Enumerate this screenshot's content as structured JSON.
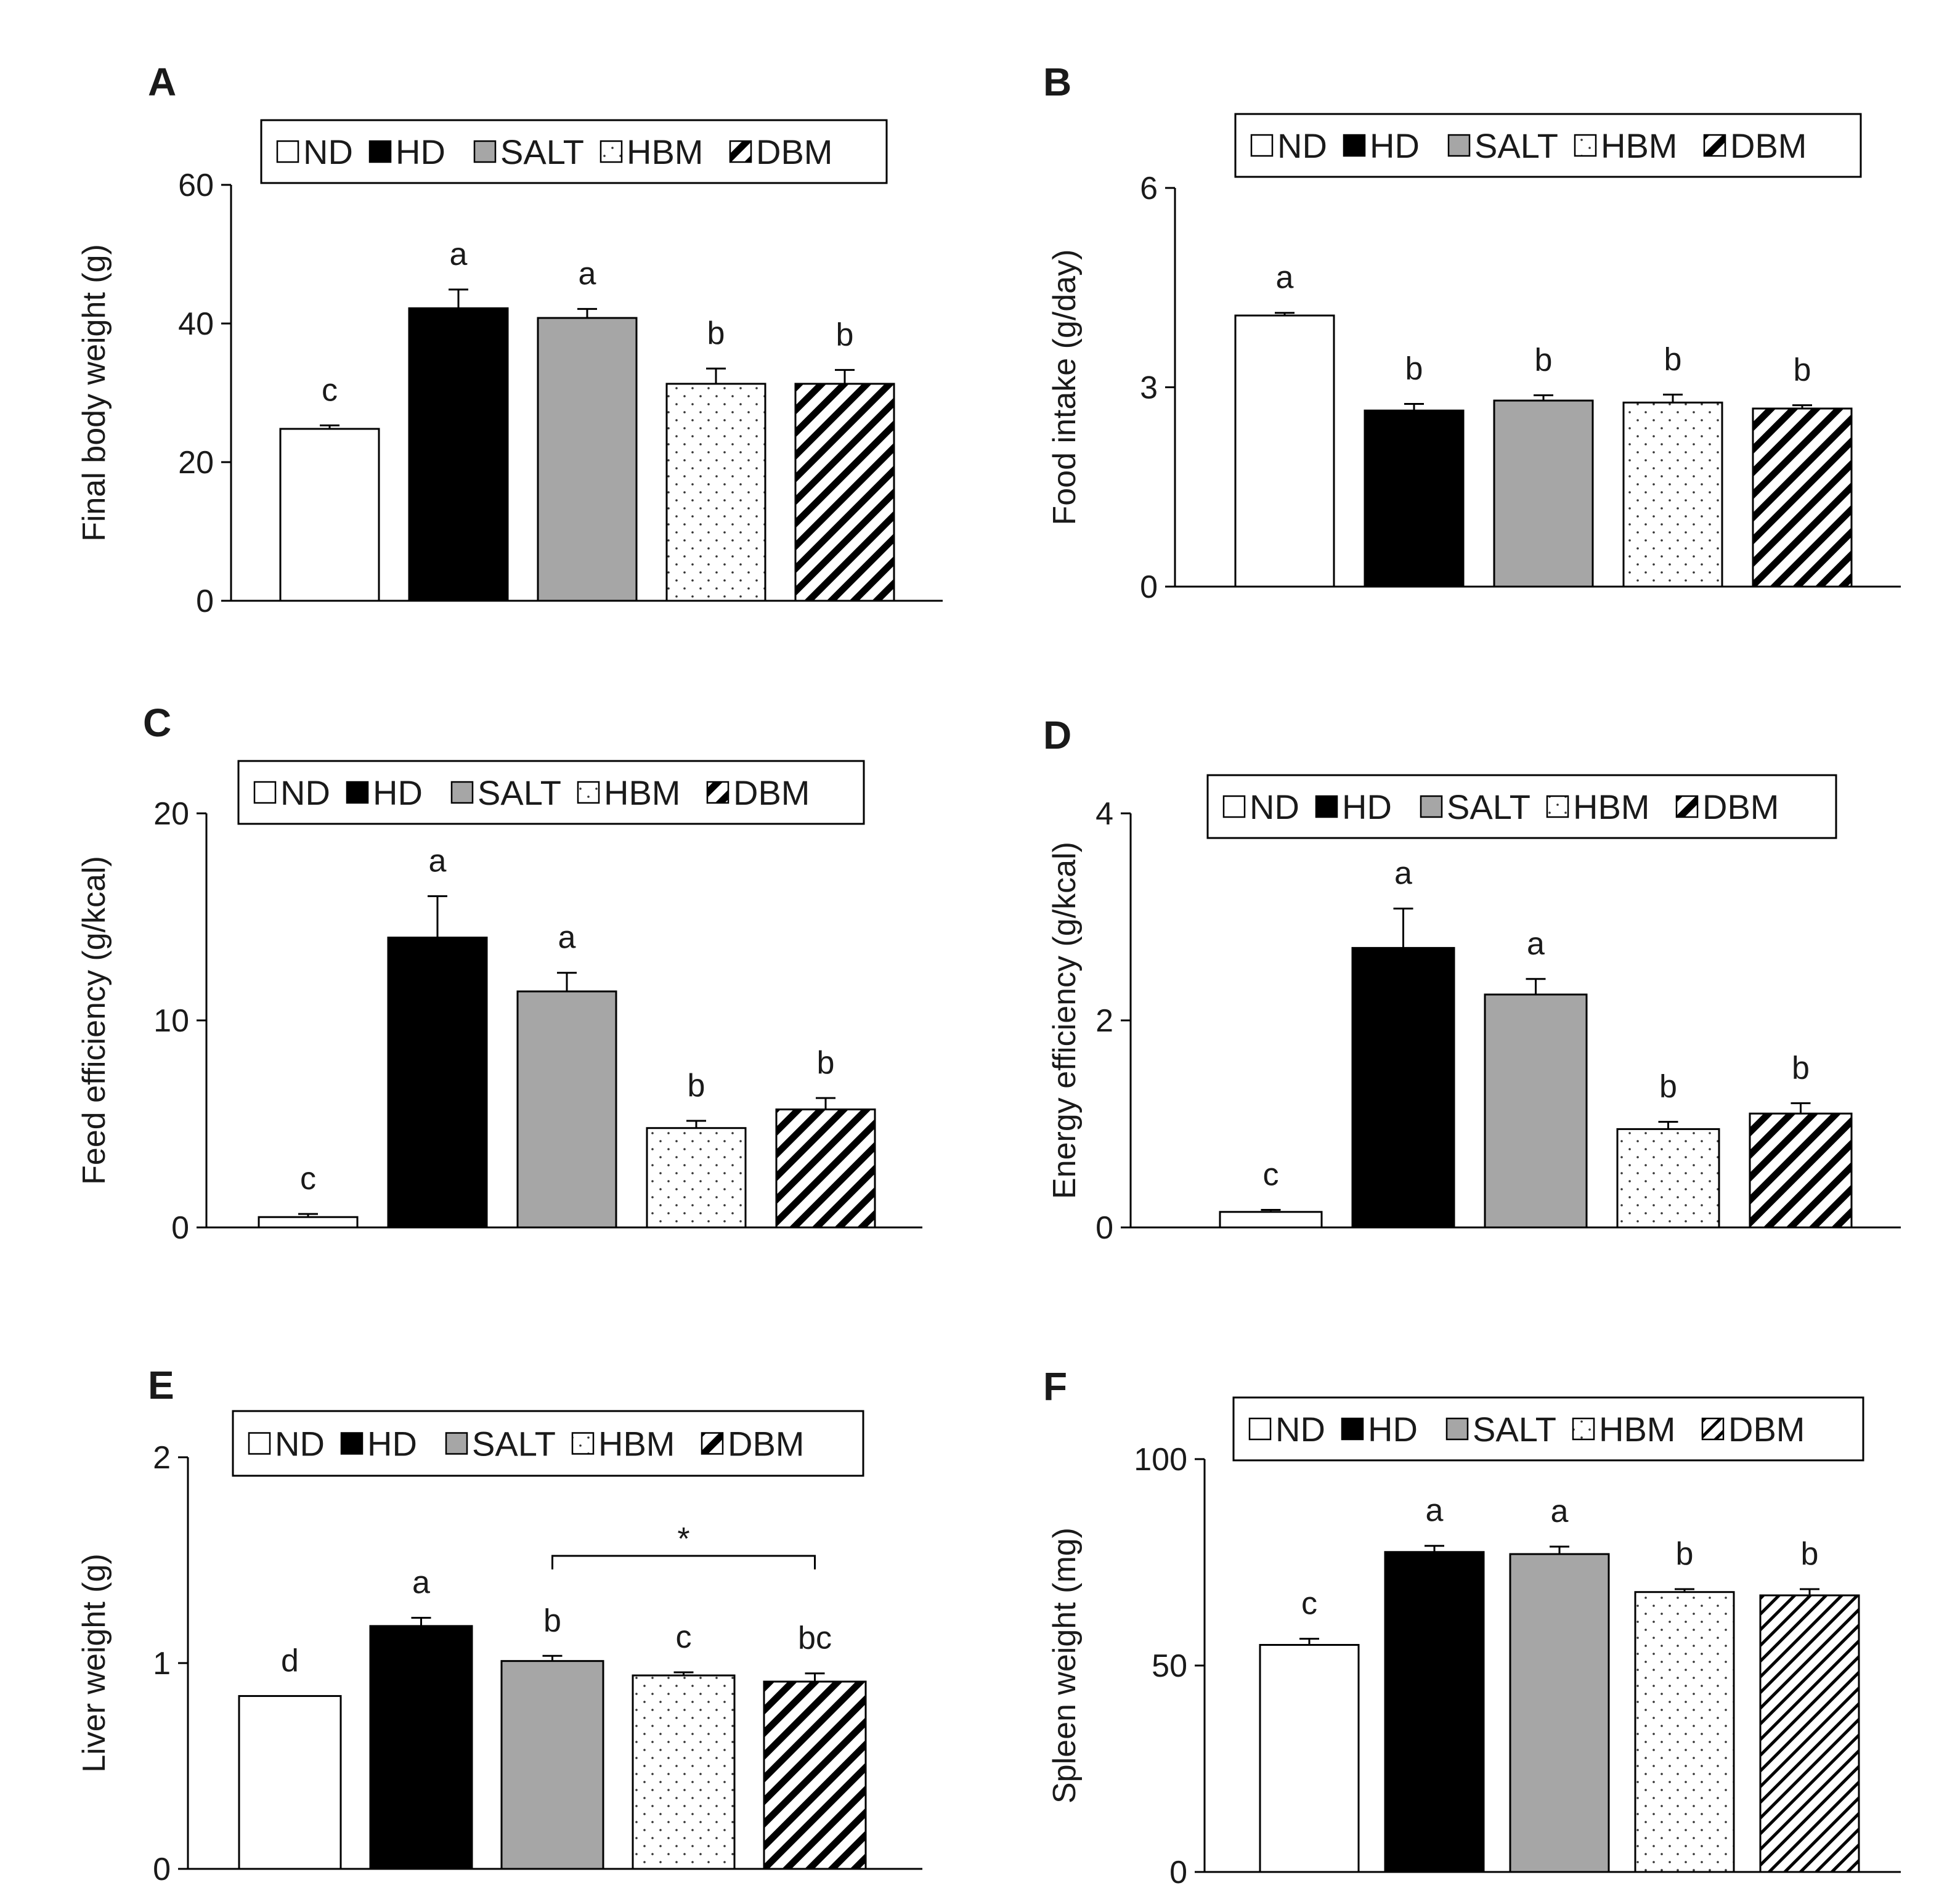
{
  "legend_groups": [
    "ND",
    "HD",
    "SALT",
    "HBM",
    "DBM"
  ],
  "colors": {
    "ND": "#ffffff",
    "HD": "#000000",
    "SALT": "#a6a6a6",
    "HBM": "dots",
    "DBM": "diagonal-hatch",
    "axis": "#000000"
  },
  "chart_data": [
    {
      "panel": "A",
      "type": "bar",
      "categories": [
        "ND",
        "HD",
        "SALT",
        "HBM",
        "DBM"
      ],
      "values": [
        24.8,
        42.2,
        40.8,
        31.3,
        31.3
      ],
      "errors": [
        0.5,
        2.7,
        1.3,
        2.2,
        2.0
      ],
      "letters": [
        "c",
        "a",
        "a",
        "b",
        "b"
      ],
      "ylabel": "Final body weight (g)",
      "ylim": [
        0,
        60
      ],
      "yticks": [
        0,
        20,
        40,
        60
      ],
      "ytick_labels": [
        "0",
        "20",
        "40",
        "60"
      ]
    },
    {
      "panel": "B",
      "type": "bar",
      "categories": [
        "ND",
        "HD",
        "SALT",
        "HBM",
        "DBM"
      ],
      "values": [
        4.08,
        2.65,
        2.8,
        2.77,
        2.68
      ],
      "errors": [
        0.04,
        0.1,
        0.08,
        0.12,
        0.05
      ],
      "letters": [
        "a",
        "b",
        "b",
        "b",
        "b"
      ],
      "ylabel": "Food intake (g/day)",
      "ylim": [
        0,
        6
      ],
      "yticks": [
        0,
        3,
        6
      ],
      "ytick_labels": [
        "0",
        "3",
        "6"
      ]
    },
    {
      "panel": "C",
      "type": "bar",
      "categories": [
        "ND",
        "HD",
        "SALT",
        "HBM",
        "DBM"
      ],
      "values": [
        0.5,
        14.0,
        11.4,
        4.8,
        5.7
      ],
      "errors": [
        0.15,
        2.0,
        0.9,
        0.35,
        0.55
      ],
      "letters": [
        "c",
        "a",
        "a",
        "b",
        "b"
      ],
      "ylabel": "Feed efficiency (g/kcal)",
      "ylim": [
        0,
        20
      ],
      "yticks": [
        0,
        10,
        20
      ],
      "ytick_labels": [
        "0",
        "10",
        "20"
      ]
    },
    {
      "panel": "D",
      "type": "bar",
      "categories": [
        "ND",
        "HD",
        "SALT",
        "HBM",
        "DBM"
      ],
      "values": [
        0.15,
        2.7,
        2.25,
        0.95,
        1.1
      ],
      "errors": [
        0.02,
        0.38,
        0.15,
        0.07,
        0.1
      ],
      "letters": [
        "c",
        "a",
        "a",
        "b",
        "b"
      ],
      "ylabel": "Energy efficiency (g/kcal)",
      "ylim": [
        0,
        4
      ],
      "yticks": [
        0,
        2,
        4
      ],
      "ytick_labels": [
        "0",
        "2",
        "4"
      ]
    },
    {
      "panel": "E",
      "type": "bar",
      "categories": [
        "ND",
        "HD",
        "SALT",
        "HBM",
        "DBM"
      ],
      "values": [
        0.84,
        1.18,
        1.01,
        0.94,
        0.91
      ],
      "errors": [
        0.0,
        0.04,
        0.025,
        0.015,
        0.04
      ],
      "letters": [
        "d",
        "a",
        "b",
        "c",
        "bc"
      ],
      "ylabel": "Liver weight (g)",
      "ylim": [
        0,
        2
      ],
      "yticks": [
        0,
        1,
        2
      ],
      "ytick_labels": [
        "0",
        "1",
        "2"
      ],
      "bracket": {
        "from": "SALT",
        "to": "DBM",
        "label": "*"
      }
    },
    {
      "panel": "F",
      "type": "bar",
      "categories": [
        "ND",
        "HD",
        "SALT",
        "HBM",
        "DBM"
      ],
      "values": [
        55.0,
        77.5,
        77.0,
        67.8,
        67.0
      ],
      "errors": [
        1.5,
        1.5,
        1.8,
        0.7,
        1.5
      ],
      "letters": [
        "c",
        "a",
        "a",
        "b",
        "b"
      ],
      "ylabel": "Spleen weight (mg)",
      "ylim": [
        0,
        100
      ],
      "yticks": [
        0,
        50,
        100
      ],
      "ytick_labels": [
        "0",
        "50",
        "100"
      ]
    }
  ]
}
